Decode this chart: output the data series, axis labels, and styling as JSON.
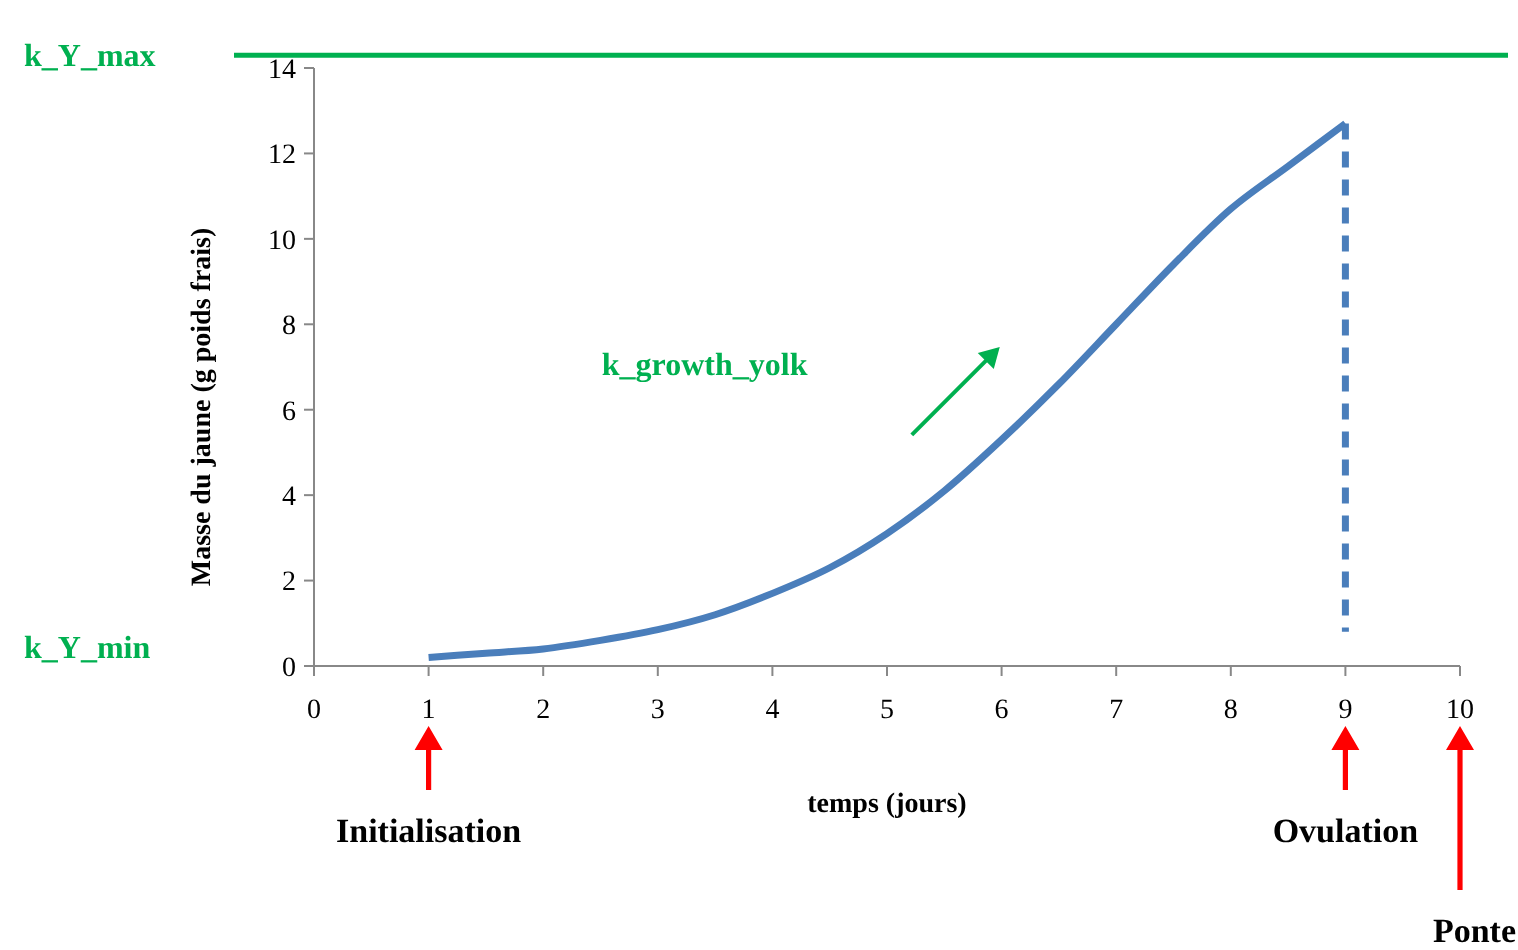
{
  "chart_data": {
    "type": "line",
    "xlabel": "temps (jours)",
    "ylabel": "Masse du jaune (g poids frais)",
    "xlim": [
      0,
      10
    ],
    "ylim": [
      0,
      14
    ],
    "xticks": [
      0,
      1,
      2,
      3,
      4,
      5,
      6,
      7,
      8,
      9,
      10
    ],
    "yticks": [
      0,
      2,
      4,
      6,
      8,
      10,
      12,
      14
    ],
    "grid": false,
    "series": [
      {
        "color": "#4a7ebb",
        "x": [
          1,
          1.5,
          2,
          2.5,
          3,
          3.5,
          4,
          4.5,
          5,
          5.5,
          6,
          6.5,
          7,
          7.5,
          8,
          8.5,
          9
        ],
        "values": [
          0.2,
          0.3,
          0.4,
          0.6,
          0.85,
          1.2,
          1.7,
          2.3,
          3.1,
          4.1,
          5.3,
          6.6,
          8.0,
          9.4,
          10.7,
          11.7,
          12.7
        ],
        "line_style": "solid"
      },
      {
        "color": "#4a7ebb",
        "x": [
          9,
          9
        ],
        "values": [
          12.7,
          0.8
        ],
        "line_style": "dashed"
      }
    ],
    "ref_lines": [
      {
        "axis": "y",
        "value": 14.3,
        "label": "k_Y_max",
        "color": "#00b050"
      }
    ],
    "annotations": [
      "k_Y_min",
      "k_growth_yolk",
      "Initialisation",
      "Ovulation",
      "Ponte"
    ]
  }
}
